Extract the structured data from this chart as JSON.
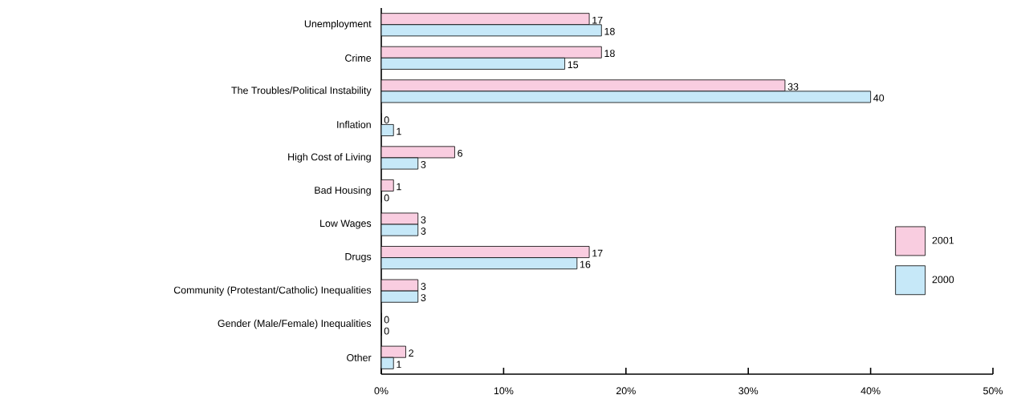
{
  "chart_data": {
    "type": "bar",
    "orientation": "horizontal",
    "categories": [
      "Unemployment",
      "Crime",
      "The Troubles/Political Instability",
      "Inflation",
      "High Cost of Living",
      "Bad Housing",
      "Low Wages",
      "Drugs",
      "Community (Protestant/Catholic) Inequalities",
      "Gender (Male/Female) Inequalities",
      "Other"
    ],
    "series": [
      {
        "name": "2001",
        "color": "#f9cde0",
        "values": [
          17,
          18,
          33,
          0,
          6,
          1,
          3,
          17,
          3,
          0,
          2
        ]
      },
      {
        "name": "2000",
        "color": "#c6e8f8",
        "values": [
          18,
          15,
          40,
          1,
          3,
          0,
          3,
          16,
          3,
          0,
          1
        ]
      }
    ],
    "xlim": [
      0,
      50
    ],
    "xticks": [
      {
        "value": 0,
        "label": "0%"
      },
      {
        "value": 10,
        "label": "10%"
      },
      {
        "value": 20,
        "label": "20%"
      },
      {
        "value": 30,
        "label": "30%"
      },
      {
        "value": 40,
        "label": "40%"
      },
      {
        "value": 50,
        "label": "50%"
      }
    ],
    "data_labels": true,
    "grid": false,
    "legend": "right"
  }
}
